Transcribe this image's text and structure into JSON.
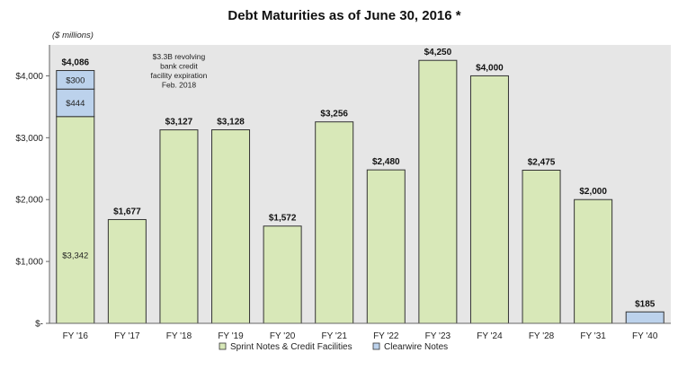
{
  "chart_data": {
    "type": "bar",
    "title": "Debt Maturities as of June 30, 2016 *",
    "unit_label": "($ millions)",
    "categories": [
      "FY '16",
      "FY '17",
      "FY '18",
      "FY '19",
      "FY '20",
      "FY '21",
      "FY '22",
      "FY '23",
      "FY '24",
      "FY '28",
      "FY '31",
      "FY '40"
    ],
    "series": [
      {
        "name": "Sprint Notes & Credit Facilities",
        "values": [
          3342,
          1677,
          3127,
          3128,
          1572,
          3256,
          2480,
          4250,
          4000,
          2475,
          2000,
          0
        ]
      },
      {
        "name": "Clearwire Notes",
        "values": [
          744,
          0,
          0,
          0,
          0,
          0,
          0,
          0,
          0,
          0,
          0,
          185
        ]
      }
    ],
    "totals_labels": [
      "$4,086",
      "$1,677",
      "$3,127",
      "$3,128",
      "$1,572",
      "$3,256",
      "$2,480",
      "$4,250",
      "$4,000",
      "$2,475",
      "$2,000",
      "$185"
    ],
    "fy16_segments": [
      {
        "label": "$3,342",
        "value": 3342,
        "color": "#d8e8b8"
      },
      {
        "label": "$444",
        "value": 444,
        "color": "#bcd2ec"
      },
      {
        "label": "$300",
        "value": 300,
        "color": "#bcd2ec"
      }
    ],
    "annotation": [
      "$3.3B revolving",
      "bank credit",
      "facility expiration",
      "Feb. 2018"
    ],
    "ylim": [
      0,
      4500
    ],
    "yticks": [
      0,
      1000,
      2000,
      3000,
      4000
    ],
    "ytick_labels": [
      "$-",
      "$1,000",
      "$2,000",
      "$3,000",
      "$4,000"
    ],
    "grid": false,
    "legend": {
      "placement": "bottom"
    },
    "colors": {
      "sprint": "#d8e8b8",
      "clearwire": "#bcd2ec",
      "plot_bg": "#e6e6e6",
      "bar_stroke": "#333333"
    }
  }
}
